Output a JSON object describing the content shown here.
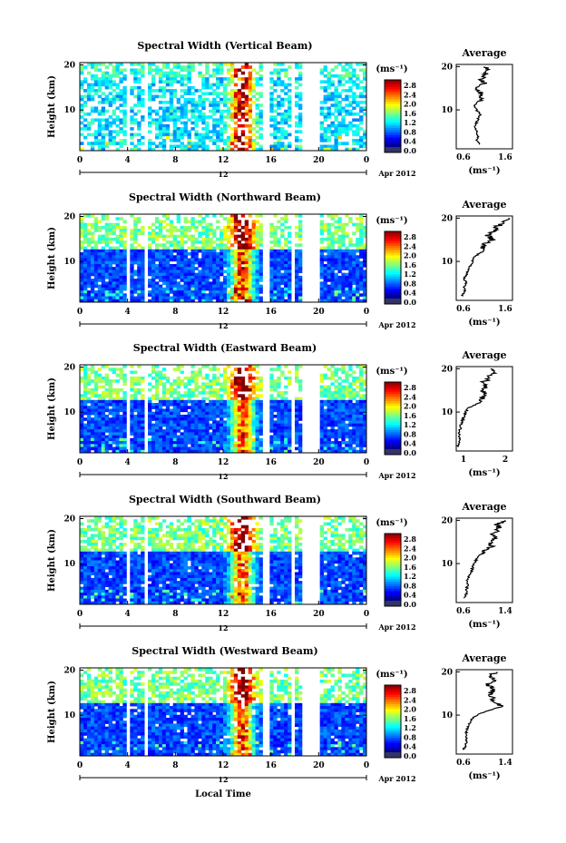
{
  "figure": {
    "date_label": "Apr 2012",
    "date_marker": "12",
    "x_label": "Local Time",
    "y_label": "Height (km)",
    "units": "(ms⁻¹)",
    "avg_title": "Average",
    "x_ticks": [
      "0",
      "4",
      "8",
      "12",
      "16",
      "20",
      "0"
    ],
    "y_ticks": [
      "20",
      "10"
    ]
  },
  "chart_data": [
    {
      "type": "heatmap",
      "title": "Spectral Width (Vertical Beam)",
      "colorbar_ticks": [
        "2.8",
        "2.4",
        "2.0",
        "1.6",
        "1.2",
        "0.8",
        "0.4",
        "0.0"
      ],
      "avg_x_ticks": [
        "0.6",
        "1.6"
      ],
      "avg_xlim": [
        0.4,
        1.8
      ],
      "avg_profile": [
        [
          1.0,
          2
        ],
        [
          0.9,
          3
        ],
        [
          0.95,
          4
        ],
        [
          0.9,
          5
        ],
        [
          0.85,
          6
        ],
        [
          0.9,
          7
        ],
        [
          0.95,
          8
        ],
        [
          1.0,
          9
        ],
        [
          0.9,
          10
        ],
        [
          0.85,
          11
        ],
        [
          0.95,
          12
        ],
        [
          1.05,
          13
        ],
        [
          1.0,
          14
        ],
        [
          0.9,
          15
        ],
        [
          1.1,
          16
        ],
        [
          1.0,
          17
        ],
        [
          1.1,
          18
        ],
        [
          1.2,
          19
        ],
        [
          1.1,
          20
        ]
      ]
    },
    {
      "type": "heatmap",
      "title": "Spectral Width (Northward Beam)",
      "colorbar_ticks": [
        "2.8",
        "2.4",
        "2.0",
        "1.6",
        "1.2",
        "0.8",
        "0.4",
        "0.0"
      ],
      "avg_x_ticks": [
        "0.6",
        "1.6"
      ],
      "avg_xlim": [
        0.4,
        1.8
      ],
      "avg_profile": [
        [
          0.55,
          2
        ],
        [
          0.6,
          3
        ],
        [
          0.6,
          4
        ],
        [
          0.65,
          5
        ],
        [
          0.6,
          6
        ],
        [
          0.65,
          7
        ],
        [
          0.7,
          8
        ],
        [
          0.75,
          9
        ],
        [
          0.8,
          10
        ],
        [
          0.85,
          11
        ],
        [
          1.0,
          12
        ],
        [
          1.05,
          13
        ],
        [
          1.1,
          14
        ],
        [
          1.3,
          15
        ],
        [
          1.2,
          16
        ],
        [
          1.35,
          17
        ],
        [
          1.4,
          18
        ],
        [
          1.6,
          19
        ],
        [
          1.7,
          20
        ]
      ]
    },
    {
      "type": "heatmap",
      "title": "Spectral Width (Eastward Beam)",
      "colorbar_ticks": [
        "2.8",
        "2.4",
        "2.0",
        "1.6",
        "1.2",
        "0.8",
        "0.4",
        "0.0"
      ],
      "avg_x_ticks": [
        "1",
        "2"
      ],
      "avg_xlim": [
        0.5,
        2.3
      ],
      "avg_profile": [
        [
          0.55,
          2
        ],
        [
          0.6,
          3
        ],
        [
          0.6,
          4
        ],
        [
          0.6,
          5
        ],
        [
          0.62,
          6
        ],
        [
          0.65,
          7
        ],
        [
          0.7,
          8
        ],
        [
          0.75,
          9
        ],
        [
          0.8,
          10
        ],
        [
          0.9,
          11
        ],
        [
          1.2,
          12
        ],
        [
          1.3,
          13
        ],
        [
          1.45,
          14
        ],
        [
          1.3,
          15
        ],
        [
          1.5,
          16
        ],
        [
          1.4,
          17
        ],
        [
          1.55,
          18
        ],
        [
          1.7,
          19
        ],
        [
          1.6,
          20
        ]
      ]
    },
    {
      "type": "heatmap",
      "title": "Spectral Width (Southward Beam)",
      "colorbar_ticks": [
        "2.8",
        "2.4",
        "2.0",
        "1.6",
        "1.2",
        "0.8",
        "0.4",
        "0.0"
      ],
      "avg_x_ticks": [
        "0.6",
        "1.4"
      ],
      "avg_xlim": [
        0.4,
        1.5
      ],
      "avg_profile": [
        [
          0.55,
          2
        ],
        [
          0.6,
          3
        ],
        [
          0.6,
          4
        ],
        [
          0.62,
          5
        ],
        [
          0.6,
          6
        ],
        [
          0.65,
          7
        ],
        [
          0.7,
          8
        ],
        [
          0.72,
          9
        ],
        [
          0.75,
          10
        ],
        [
          0.8,
          11
        ],
        [
          0.85,
          12
        ],
        [
          0.95,
          13
        ],
        [
          1.1,
          14
        ],
        [
          1.05,
          15
        ],
        [
          1.2,
          16
        ],
        [
          1.1,
          17
        ],
        [
          1.25,
          18
        ],
        [
          1.2,
          19
        ],
        [
          1.35,
          20
        ]
      ]
    },
    {
      "type": "heatmap",
      "title": "Spectral Width (Westward Beam)",
      "colorbar_ticks": [
        "2.8",
        "2.4",
        "2.0",
        "1.6",
        "1.2",
        "0.8",
        "0.4",
        "0.0"
      ],
      "avg_x_ticks": [
        "0.6",
        "1.4"
      ],
      "avg_xlim": [
        0.4,
        1.5
      ],
      "avg_profile": [
        [
          0.55,
          2
        ],
        [
          0.58,
          3
        ],
        [
          0.6,
          4
        ],
        [
          0.6,
          5
        ],
        [
          0.6,
          6
        ],
        [
          0.62,
          7
        ],
        [
          0.65,
          8
        ],
        [
          0.7,
          9
        ],
        [
          0.8,
          10
        ],
        [
          1.0,
          11
        ],
        [
          1.3,
          12
        ],
        [
          1.15,
          13
        ],
        [
          1.1,
          14
        ],
        [
          1.05,
          15
        ],
        [
          1.15,
          16
        ],
        [
          1.0,
          17
        ],
        [
          1.15,
          18
        ],
        [
          1.05,
          19
        ],
        [
          1.2,
          20
        ]
      ]
    }
  ]
}
